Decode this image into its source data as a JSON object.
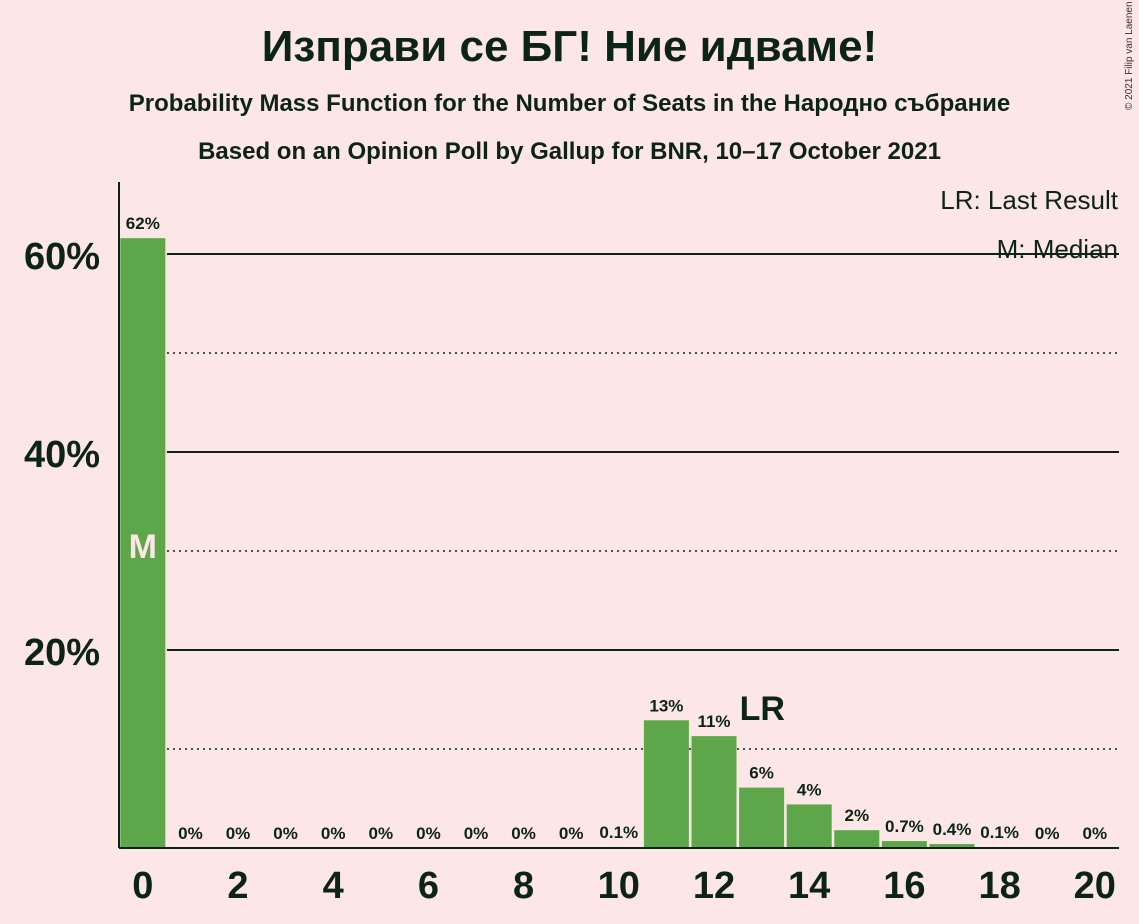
{
  "title": "Изправи се БГ! Ние идваме!",
  "subtitle1": "Probability Mass Function for the Number of Seats in the Народно събрание",
  "subtitle2": "Based on an Opinion Poll by Gallup for BNR, 10–17 October 2021",
  "copyright": "© 2021 Filip van Laenen",
  "colors": {
    "bar": "#5ea64a",
    "axis": "#0c2416",
    "median_label": "#fde6e6"
  },
  "chart_data": {
    "type": "bar",
    "x": [
      0,
      1,
      2,
      3,
      4,
      5,
      6,
      7,
      8,
      9,
      10,
      11,
      12,
      13,
      14,
      15,
      16,
      17,
      18,
      19,
      20
    ],
    "values": [
      61.6,
      0,
      0,
      0,
      0,
      0,
      0,
      0,
      0,
      0,
      0.1,
      12.9,
      11.3,
      6.1,
      4.4,
      1.8,
      0.7,
      0.4,
      0.1,
      0,
      0
    ],
    "data_labels": [
      "62%",
      "0%",
      "0%",
      "0%",
      "0%",
      "0%",
      "0%",
      "0%",
      "0%",
      "0%",
      "0.1%",
      "13%",
      "11%",
      "6%",
      "4%",
      "2%",
      "0.7%",
      "0.4%",
      "0.1%",
      "0%",
      "0%"
    ],
    "x_ticks": [
      0,
      2,
      4,
      6,
      8,
      10,
      12,
      14,
      16,
      18,
      20
    ],
    "y_ticks": [
      20,
      40,
      60
    ],
    "y_tick_labels": [
      "20%",
      "40%",
      "60%"
    ],
    "ylim": [
      0,
      67
    ],
    "grid_solid": [
      20,
      40,
      60
    ],
    "grid_dotted": [
      10,
      30,
      50
    ],
    "last_result": 13,
    "last_result_label": "LR",
    "median": 0,
    "median_label": "M",
    "legend": [
      "LR: Last Result",
      "M: Median"
    ],
    "legend_position": "top-right"
  }
}
